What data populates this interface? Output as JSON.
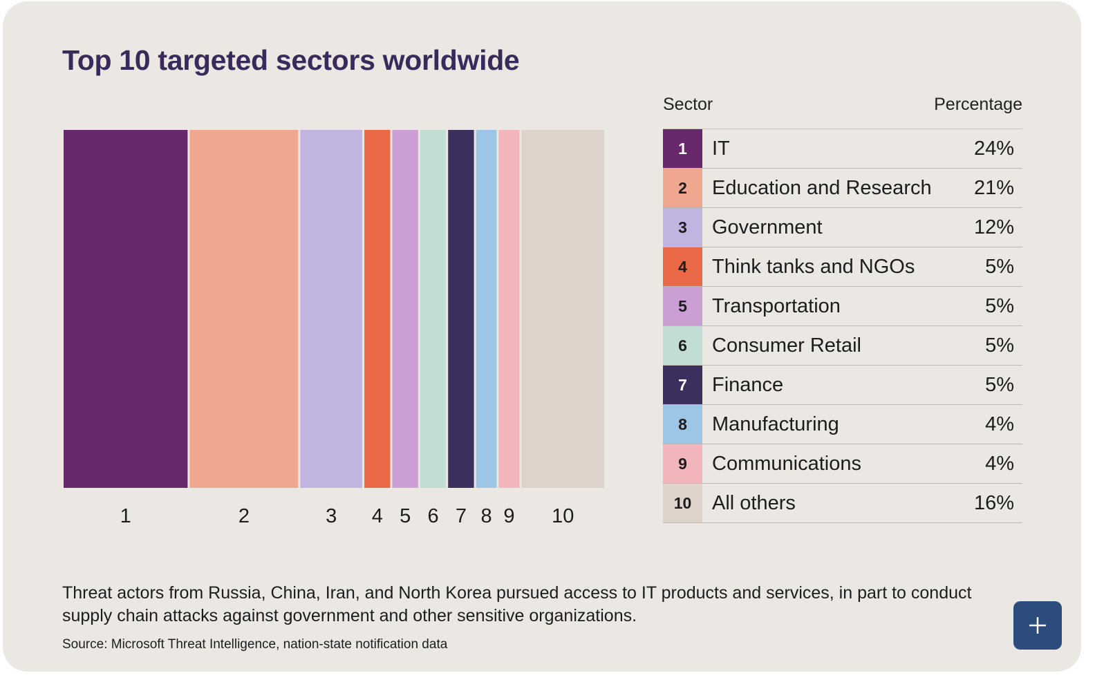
{
  "title": "Top 10 targeted sectors worldwide",
  "legend": {
    "header_sector": "Sector",
    "header_percentage": "Percentage"
  },
  "chart_data": {
    "type": "bar",
    "subtype": "proportional-width-segments",
    "title": "Top 10 targeted sectors worldwide",
    "categories": [
      "1",
      "2",
      "3",
      "4",
      "5",
      "6",
      "7",
      "8",
      "9",
      "10"
    ],
    "series": [
      {
        "name": "Percentage",
        "values": [
          24,
          21,
          12,
          5,
          5,
          5,
          5,
          4,
          4,
          16
        ]
      }
    ],
    "sectors": [
      {
        "rank": "1",
        "name": "IT",
        "value": 24,
        "label": "24%",
        "color": "#66276b",
        "text_color": "#ffffff"
      },
      {
        "rank": "2",
        "name": "Education and Research",
        "value": 21,
        "label": "21%",
        "color": "#f0a78f",
        "text_color": "#1c1c1c"
      },
      {
        "rank": "3",
        "name": "Government",
        "value": 12,
        "label": "12%",
        "color": "#c2b4e0",
        "text_color": "#1c1c1c"
      },
      {
        "rank": "4",
        "name": "Think tanks and NGOs",
        "value": 5,
        "label": "5%",
        "color": "#eb6847",
        "text_color": "#1c1c1c"
      },
      {
        "rank": "5",
        "name": "Transportation",
        "value": 5,
        "label": "5%",
        "color": "#cc9fd4",
        "text_color": "#1c1c1c"
      },
      {
        "rank": "6",
        "name": "Consumer Retail",
        "value": 5,
        "label": "5%",
        "color": "#c1ddd4",
        "text_color": "#1c1c1c"
      },
      {
        "rank": "7",
        "name": "Finance",
        "value": 5,
        "label": "5%",
        "color": "#3c2f5e",
        "text_color": "#ffffff"
      },
      {
        "rank": "8",
        "name": "Manufacturing",
        "value": 4,
        "label": "4%",
        "color": "#9dc6e6",
        "text_color": "#1c1c1c"
      },
      {
        "rank": "9",
        "name": "Communications",
        "value": 4,
        "label": "4%",
        "color": "#f3b5bc",
        "text_color": "#1c1c1c"
      },
      {
        "rank": "10",
        "name": "All others",
        "value": 16,
        "label": "16%",
        "color": "#ded3ca",
        "text_color": "#1c1c1c"
      }
    ],
    "xlabel": "",
    "ylabel": "",
    "grid": false,
    "legend_position": "right"
  },
  "caption": "Threat actors from Russia, China, Iran, and North Korea pursued access to IT products and services, in part to conduct supply chain attacks against government and other sensitive organizations.",
  "source": "Source: Microsoft Threat Intelligence, nation-state notification data",
  "buttons": {
    "expand_icon": "plus-icon"
  }
}
